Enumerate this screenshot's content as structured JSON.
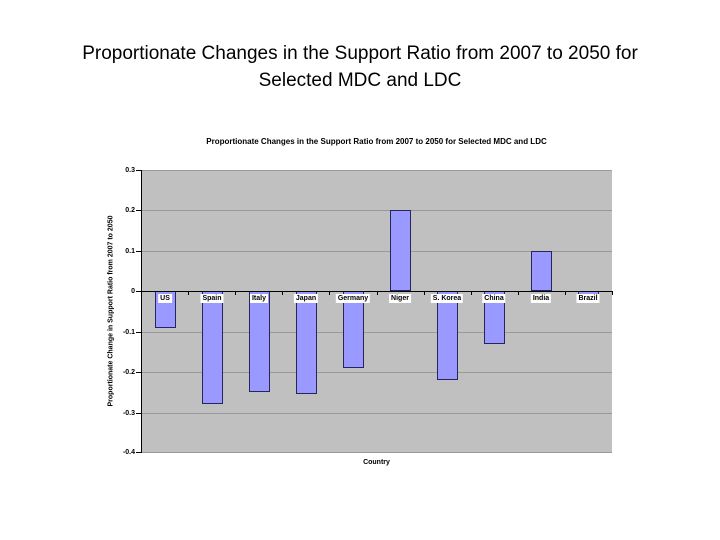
{
  "slide": {
    "title": "Proportionate Changes in the Support Ratio from 2007 to 2050 for Selected MDC and LDC"
  },
  "chart_data": {
    "type": "bar",
    "title": "Proportionate Changes in the Support Ratio from 2007 to 2050 for Selected MDC and LDC",
    "xlabel": "Country",
    "ylabel": "Proportionate Change in Support Ratio from 2007 to 2050",
    "categories": [
      "US",
      "Spain",
      "Italy",
      "Japan",
      "Germany",
      "Niger",
      "S. Korea",
      "China",
      "India",
      "Brazil"
    ],
    "values": [
      -0.09,
      -0.28,
      -0.25,
      -0.255,
      -0.19,
      0.2,
      -0.22,
      -0.13,
      0.1,
      -0.015
    ],
    "ylim": [
      -0.4,
      0.3
    ],
    "ytick_labels": [
      "0.3",
      "0.2",
      "0.1",
      "0",
      "-0.1",
      "-0.2",
      "-0.3",
      "-0.4"
    ],
    "grid": true,
    "legend": false,
    "colors": {
      "bar_fill": "#9999FF",
      "bar_border": "#26265C",
      "plot_bg": "#C0C0C0",
      "gridline": "#999999",
      "axis": "#000000"
    }
  }
}
